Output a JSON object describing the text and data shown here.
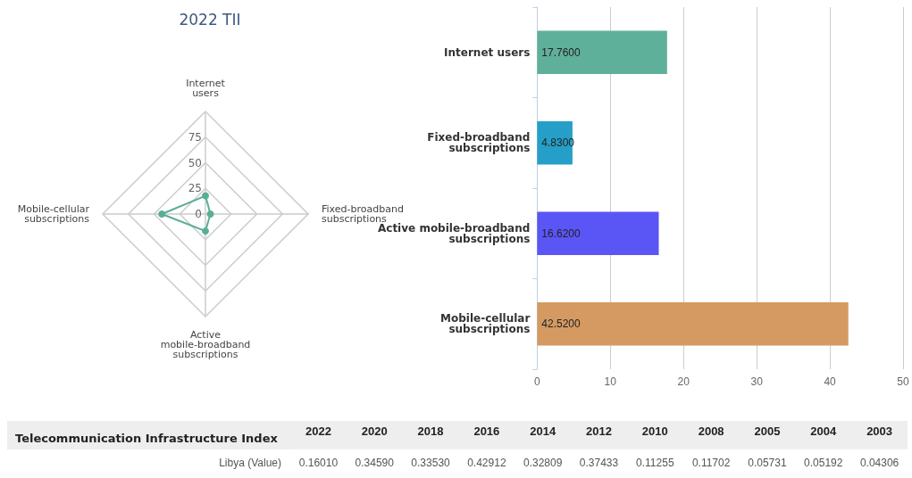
{
  "chart_data": [
    {
      "type": "radar",
      "title": "2022 TII",
      "categories": [
        "Internet users",
        "Fixed-broadband subscriptions",
        "Active mobile-broadband subscriptions",
        "Mobile-cellular subscriptions"
      ],
      "series": [
        {
          "color": "#5aae96",
          "values": [
            17.76,
            4.83,
            16.62,
            42.52
          ]
        }
      ],
      "ylim": [
        0,
        100
      ],
      "yticks": [
        0,
        25,
        50,
        75
      ],
      "marker": "circle"
    },
    {
      "type": "bar",
      "orientation": "horizontal",
      "categories": [
        "Internet users",
        "Fixed-broadband subscriptions",
        "Active mobile-broadband subscriptions",
        "Mobile-cellular subscriptions"
      ],
      "values": [
        17.76,
        4.83,
        16.62,
        42.52
      ],
      "colors": [
        "#5fb09a",
        "#259fc7",
        "#5a55f5",
        "#d49a62"
      ],
      "value_labels": [
        "17.7600",
        "4.8300",
        "16.6200",
        "42.5200"
      ],
      "xlim": [
        0,
        50
      ],
      "xticks": [
        0,
        10,
        20,
        30,
        40,
        50
      ],
      "grid": "x"
    },
    {
      "type": "heatmap",
      "title": "Telecommunication Infrastructure Index",
      "categories": [
        "2022",
        "2020",
        "2018",
        "2016",
        "2014",
        "2012",
        "2010",
        "2008",
        "2005",
        "2004",
        "2003"
      ],
      "y_categories": [
        "Libya (Value)"
      ],
      "cells": [
        [
          0.1601,
          0.3459,
          0.3353,
          0.42912,
          0.32809,
          0.37433,
          0.11255,
          0.11702,
          0.05731,
          0.05192,
          0.04306
        ]
      ],
      "cell_labels": [
        [
          "0.16010",
          "0.34590",
          "0.33530",
          "0.42912",
          "0.32809",
          "0.37433",
          "0.11255",
          "0.11702",
          "0.05731",
          "0.05192",
          "0.04306"
        ]
      ]
    }
  ]
}
